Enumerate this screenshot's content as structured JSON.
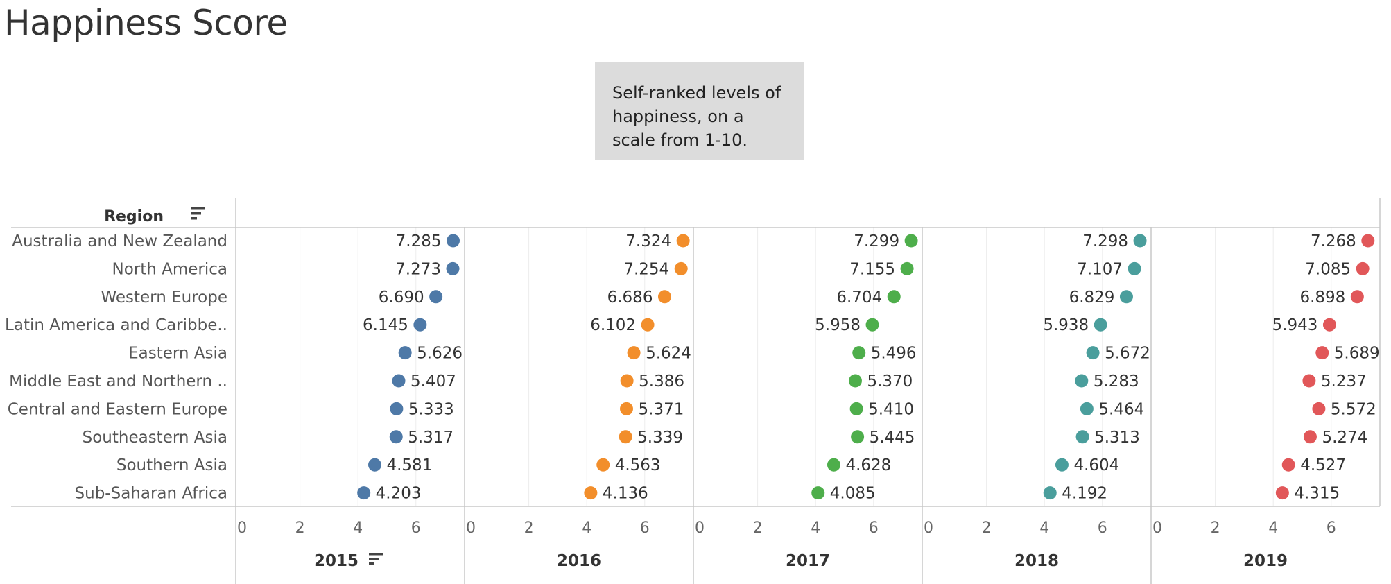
{
  "title": "Happiness Score",
  "caption": "Self-ranked levels of happiness, on a scale from 1-10.",
  "colors": {
    "2015": "#4e79a7",
    "2016": "#f28e2b",
    "2017": "#4eae4b",
    "2018": "#4a9e9c",
    "2019": "#e15759",
    "grid": "#ececec",
    "divider": "#c8c8c8"
  },
  "icons": {
    "sort": "sort-descending-icon"
  },
  "chart_data": {
    "type": "scatter",
    "row_header": "Region",
    "categories": [
      "Australia and New Zealand",
      "North America",
      "Western Europe",
      "Latin America and Caribbe..",
      "Eastern Asia",
      "Middle East and Northern ..",
      "Central and Eastern Europe",
      "Southeastern Asia",
      "Southern Asia",
      "Sub-Saharan Africa"
    ],
    "x_ticks": [
      0,
      2,
      4,
      6
    ],
    "xlim": [
      0,
      7.8
    ],
    "series": [
      {
        "name": "2015",
        "labels": [
          "7.285",
          "7.273",
          "6.690",
          "6.145",
          "5.626",
          "5.407",
          "5.333",
          "5.317",
          "4.581",
          "4.203"
        ],
        "values": [
          7.285,
          7.273,
          6.69,
          6.145,
          5.626,
          5.407,
          5.333,
          5.317,
          4.581,
          4.203
        ]
      },
      {
        "name": "2016",
        "labels": [
          "7.324",
          "7.254",
          "6.686",
          "6.102",
          "5.624",
          "5.386",
          "5.371",
          "5.339",
          "4.563",
          "4.136"
        ],
        "values": [
          7.324,
          7.254,
          6.686,
          6.102,
          5.624,
          5.386,
          5.371,
          5.339,
          4.563,
          4.136
        ]
      },
      {
        "name": "2017",
        "labels": [
          "7.299",
          "7.155",
          "6.704",
          "5.958",
          "5.496",
          "5.370",
          "5.410",
          "5.445",
          "4.628",
          "4.085"
        ],
        "values": [
          7.299,
          7.155,
          6.704,
          5.958,
          5.496,
          5.37,
          5.41,
          5.445,
          4.628,
          4.085
        ]
      },
      {
        "name": "2018",
        "labels": [
          "7.298",
          "7.107",
          "6.829",
          "5.938",
          "5.672",
          "5.283",
          "5.464",
          "5.313",
          "4.604",
          "4.192"
        ],
        "values": [
          7.298,
          7.107,
          6.829,
          5.938,
          5.672,
          5.283,
          5.464,
          5.313,
          4.604,
          4.192
        ]
      },
      {
        "name": "2019",
        "labels": [
          "7.268",
          "7.085",
          "6.898",
          "5.943",
          "5.689",
          "5.237",
          "5.572",
          "5.274",
          "4.527",
          "4.315"
        ],
        "values": [
          7.268,
          7.085,
          6.898,
          5.943,
          5.689,
          5.237,
          5.572,
          5.274,
          4.527,
          4.315
        ]
      }
    ],
    "sorted_series": "2015",
    "grid": true,
    "legend": "none"
  }
}
